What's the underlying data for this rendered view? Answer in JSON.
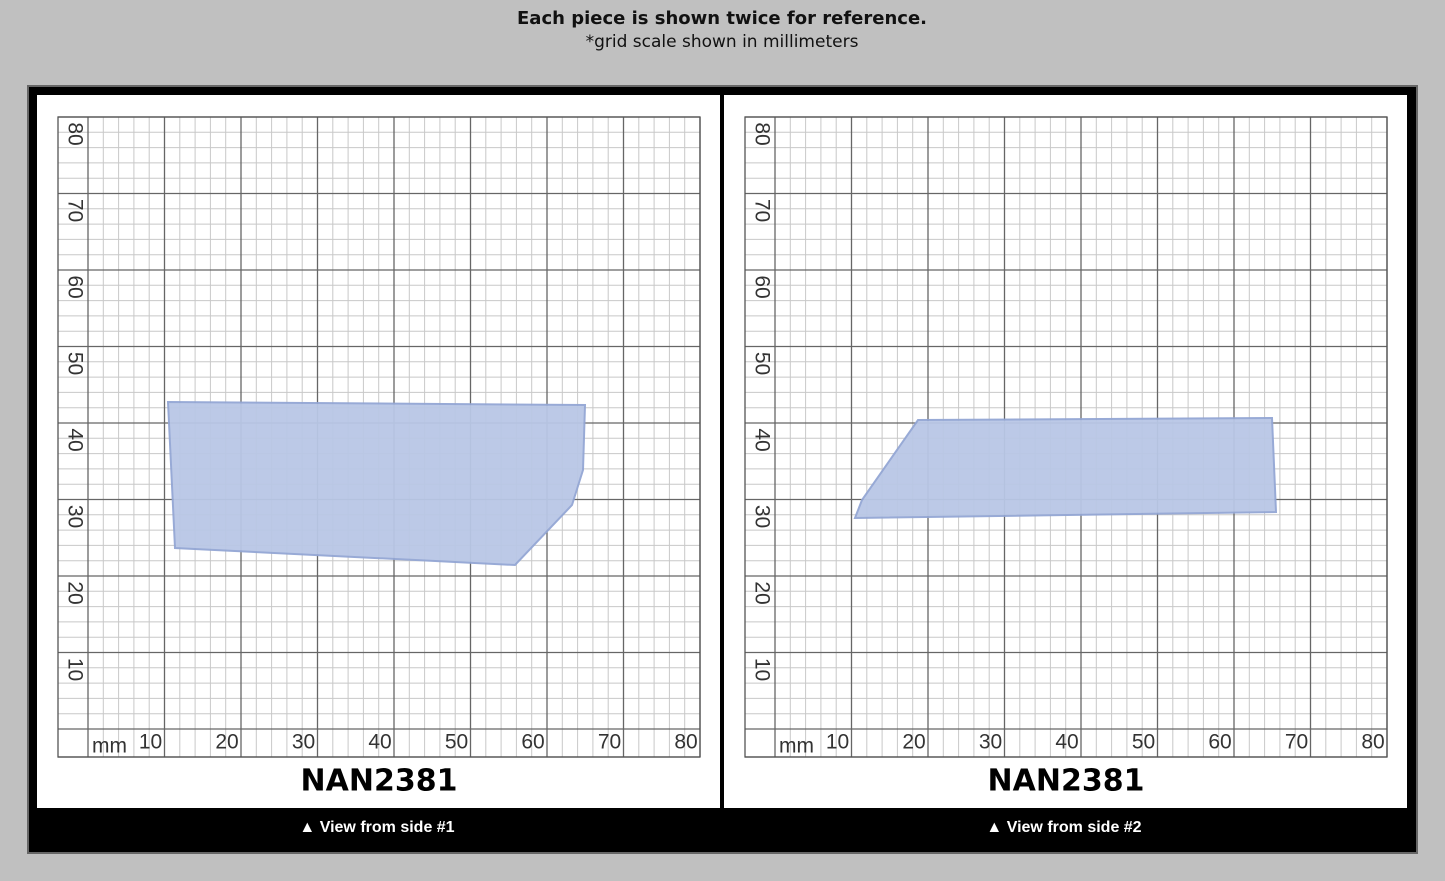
{
  "header": {
    "title": "Each piece is shown twice for reference.",
    "subtitle": "*grid scale shown in millimeters"
  },
  "panels": [
    {
      "unit": "mm",
      "x_labels": [
        10,
        20,
        30,
        40,
        50,
        60,
        70,
        80
      ],
      "y_labels": [
        80,
        70,
        60,
        50,
        40,
        30,
        20,
        10
      ],
      "label": "NAN2381",
      "caption": "▲ View from side #1"
    },
    {
      "unit": "mm",
      "x_labels": [
        10,
        20,
        30,
        40,
        50,
        60,
        70,
        80
      ],
      "y_labels": [
        80,
        70,
        60,
        50,
        40,
        30,
        20,
        10
      ],
      "label": "NAN2381",
      "caption": "▲ View from side #2"
    }
  ]
}
